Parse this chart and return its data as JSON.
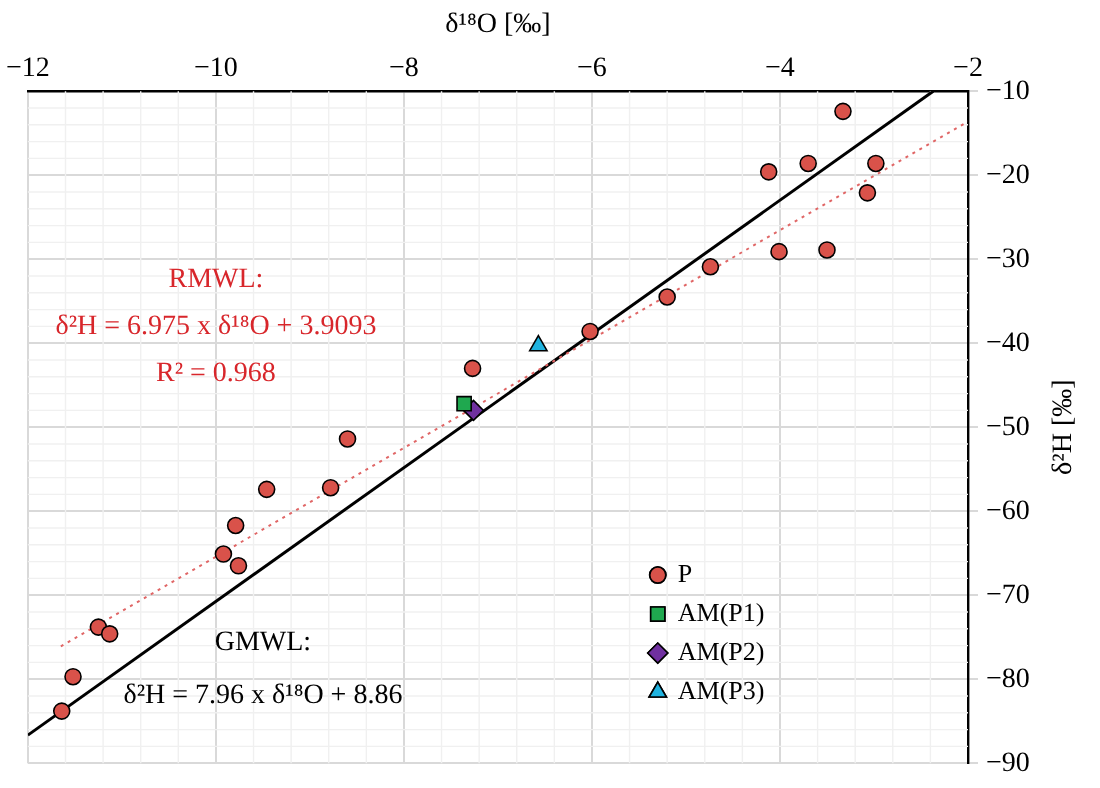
{
  "chart_data": {
    "type": "scatter",
    "xlabel": "δ¹⁸O [‰]",
    "ylabel": "δ²H [‰]",
    "xlim": [
      -12,
      -2
    ],
    "xticks": [
      -12,
      -10,
      -8,
      -6,
      -4,
      -2
    ],
    "ylim": [
      -90,
      -10
    ],
    "yticks": [
      -90,
      -80,
      -70,
      -60,
      -50,
      -40,
      -30,
      -20,
      -10
    ],
    "grid": true,
    "legend": "bottom right",
    "series": [
      {
        "name": "P",
        "color": "#d9524a",
        "marker": "circle",
        "x": [
          -3.33,
          -4.12,
          -3.7,
          -2.98,
          -3.07,
          -4.01,
          -3.5,
          -4.74,
          -5.2,
          -6.02,
          -7.27,
          -8.6,
          -8.78,
          -9.46,
          -9.79,
          -9.92,
          -9.76,
          -11.25,
          -11.13,
          -11.52,
          -11.64
        ],
        "values": [
          -12.4,
          -19.6,
          -18.6,
          -18.6,
          -22.1,
          -29.1,
          -28.9,
          -30.9,
          -34.5,
          -38.6,
          -43.0,
          -51.4,
          -57.2,
          -57.4,
          -61.7,
          -65.1,
          -66.5,
          -73.8,
          -74.6,
          -79.7,
          -83.8
        ]
      },
      {
        "name": "AM(P1)",
        "color": "#1fa84f",
        "marker": "square",
        "x": [
          -7.36
        ],
        "values": [
          -47.2
        ]
      },
      {
        "name": "AM(P2)",
        "color": "#7030a0",
        "marker": "diamond",
        "x": [
          -7.26
        ],
        "values": [
          -48.0
        ]
      },
      {
        "name": "AM(P3)",
        "color": "#1fb3e0",
        "marker": "triangle",
        "x": [
          -6.57
        ],
        "values": [
          -40.3
        ]
      },
      {
        "type": "line",
        "color": "#e06666",
        "line_style": "dotted",
        "x": [
          -11.65,
          -2
        ],
        "values": [
          -76.1,
          -13.6
        ]
      },
      {
        "type": "line",
        "color": "#000000",
        "line_style": "solid",
        "x": [
          -12,
          -2.37
        ],
        "values": [
          -86.66,
          -10
        ]
      }
    ],
    "annotations": [
      "RMWL:",
      "δ²H = 6.975 x δ¹⁸O + 3.9093",
      "R² = 0.968",
      "GMWL:",
      "δ²H = 7.96 x δ¹⁸O + 8.86"
    ]
  }
}
